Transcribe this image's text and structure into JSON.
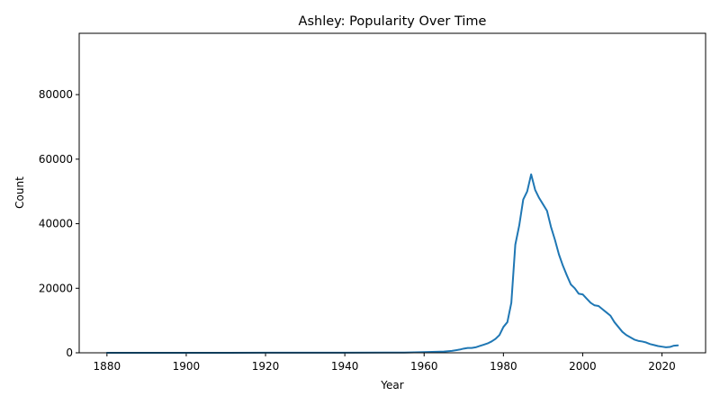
{
  "chart_data": {
    "type": "line",
    "title": "Ashley: Popularity Over Time",
    "xlabel": "Year",
    "ylabel": "Count",
    "xlim": [
      1873,
      2031
    ],
    "ylim": [
      0,
      99000
    ],
    "x_ticks": [
      1880,
      1900,
      1920,
      1940,
      1960,
      1980,
      2000,
      2020
    ],
    "y_ticks": [
      0,
      20000,
      40000,
      60000,
      80000
    ],
    "grid": false,
    "line_color": "#1f77b4",
    "series": [
      {
        "values": [
          [
            1880,
            10
          ],
          [
            1890,
            10
          ],
          [
            1900,
            12
          ],
          [
            1910,
            15
          ],
          [
            1920,
            30
          ],
          [
            1930,
            25
          ],
          [
            1940,
            40
          ],
          [
            1950,
            60
          ],
          [
            1955,
            80
          ],
          [
            1960,
            200
          ],
          [
            1963,
            300
          ],
          [
            1965,
            400
          ],
          [
            1967,
            600
          ],
          [
            1969,
            1000
          ],
          [
            1970,
            1300
          ],
          [
            1971,
            1500
          ],
          [
            1972,
            1500
          ],
          [
            1973,
            1700
          ],
          [
            1974,
            2100
          ],
          [
            1975,
            2500
          ],
          [
            1976,
            2900
          ],
          [
            1977,
            3500
          ],
          [
            1978,
            4300
          ],
          [
            1979,
            5500
          ],
          [
            1980,
            8000
          ],
          [
            1981,
            9500
          ],
          [
            1982,
            15500
          ],
          [
            1983,
            33500
          ],
          [
            1984,
            39500
          ],
          [
            1985,
            47500
          ],
          [
            1986,
            50000
          ],
          [
            1987,
            55300
          ],
          [
            1988,
            50500
          ],
          [
            1989,
            48000
          ],
          [
            1990,
            46000
          ],
          [
            1991,
            44000
          ],
          [
            1992,
            39000
          ],
          [
            1993,
            35000
          ],
          [
            1994,
            30500
          ],
          [
            1995,
            27000
          ],
          [
            1996,
            24000
          ],
          [
            1997,
            21200
          ],
          [
            1998,
            20000
          ],
          [
            1999,
            18300
          ],
          [
            2000,
            18100
          ],
          [
            2001,
            16800
          ],
          [
            2002,
            15500
          ],
          [
            2003,
            14700
          ],
          [
            2004,
            14500
          ],
          [
            2005,
            13500
          ],
          [
            2006,
            12500
          ],
          [
            2007,
            11500
          ],
          [
            2008,
            9500
          ],
          [
            2009,
            8000
          ],
          [
            2010,
            6500
          ],
          [
            2011,
            5500
          ],
          [
            2012,
            4800
          ],
          [
            2013,
            4100
          ],
          [
            2014,
            3700
          ],
          [
            2015,
            3500
          ],
          [
            2016,
            3200
          ],
          [
            2017,
            2700
          ],
          [
            2018,
            2400
          ],
          [
            2019,
            2100
          ],
          [
            2020,
            1900
          ],
          [
            2021,
            1700
          ],
          [
            2022,
            1800
          ],
          [
            2023,
            2200
          ],
          [
            2024,
            2300
          ]
        ]
      }
    ]
  }
}
